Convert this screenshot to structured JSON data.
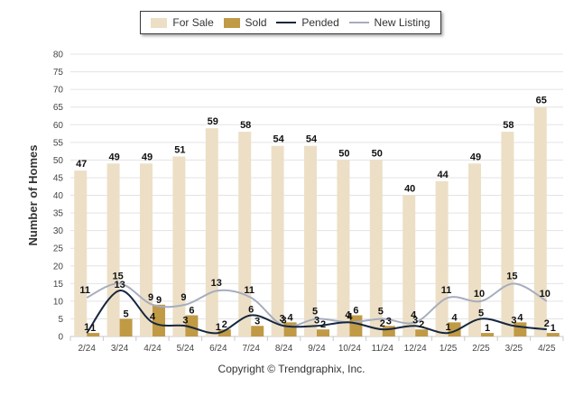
{
  "chart_data": {
    "type": "bar",
    "title": "",
    "xlabel": "",
    "ylabel": "Number of Homes",
    "ylim": [
      0,
      80
    ],
    "y_ticks": [
      0,
      5,
      10,
      15,
      20,
      25,
      30,
      35,
      40,
      45,
      50,
      55,
      60,
      65,
      70,
      75,
      80
    ],
    "grid": true,
    "legend_position": "top-center",
    "categories": [
      "2/24",
      "3/24",
      "4/24",
      "5/24",
      "6/24",
      "7/24",
      "8/24",
      "9/24",
      "10/24",
      "11/24",
      "12/24",
      "1/25",
      "2/25",
      "3/25",
      "4/25"
    ],
    "series": [
      {
        "name": "For Sale",
        "kind": "bar",
        "color": "#ecdfc6",
        "values": [
          47,
          49,
          49,
          51,
          59,
          58,
          54,
          54,
          50,
          50,
          40,
          44,
          49,
          58,
          65
        ]
      },
      {
        "name": "Sold",
        "kind": "bar",
        "color": "#c09a45",
        "values": [
          1,
          5,
          9,
          6,
          2,
          3,
          4,
          2,
          6,
          3,
          2,
          4,
          1,
          4,
          1
        ]
      },
      {
        "name": "Pended",
        "kind": "line",
        "color": "#16263e",
        "values": [
          1,
          13,
          4,
          3,
          1,
          6,
          3,
          3,
          4,
          2,
          3,
          1,
          5,
          3,
          2
        ]
      },
      {
        "name": "New Listing",
        "kind": "line",
        "color": "#a6adbd",
        "values": [
          11,
          15,
          9,
          9,
          13,
          11,
          3,
          5,
          4,
          5,
          4,
          11,
          10,
          15,
          10
        ]
      }
    ]
  },
  "footer": {
    "copyright": "Copyright © Trendgraphix, Inc."
  }
}
